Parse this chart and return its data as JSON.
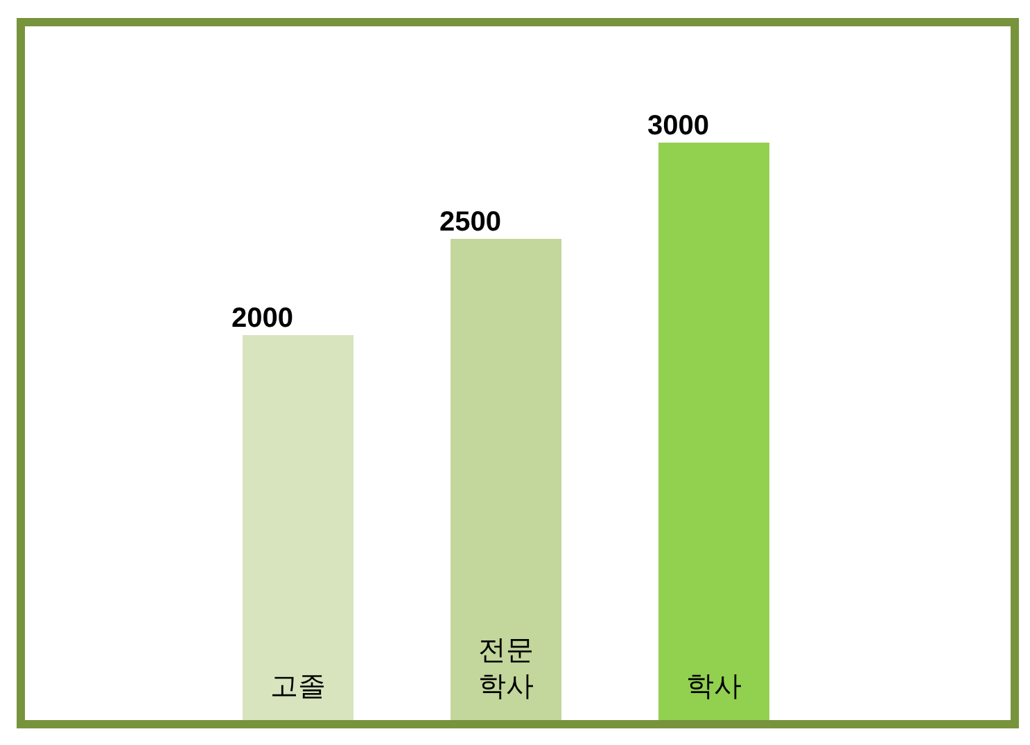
{
  "chart_data": {
    "type": "bar",
    "categories": [
      "고졸",
      "전문\n학사",
      "학사"
    ],
    "values": [
      2000,
      2500,
      3000
    ],
    "colors": [
      "#d7e4bd",
      "#c3d69b",
      "#92d050"
    ],
    "data_labels": true
  }
}
